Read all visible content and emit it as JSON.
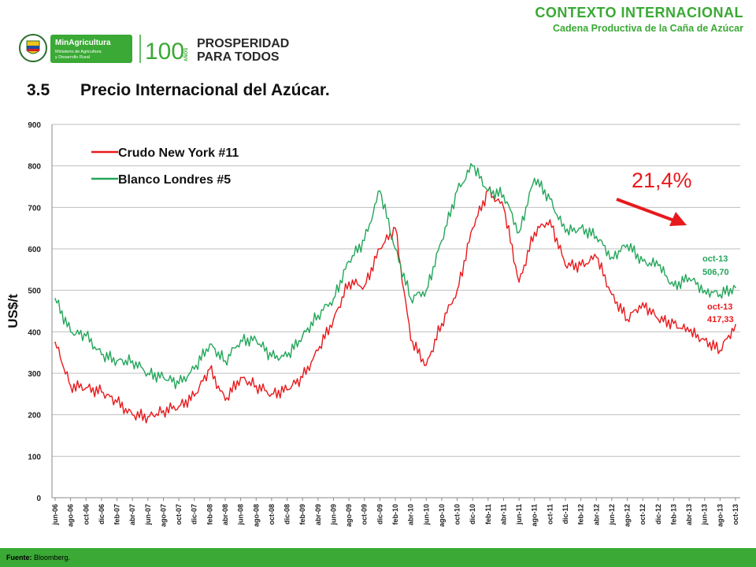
{
  "header": {
    "section": "CONTEXTO INTERNACIONAL",
    "subtitle": "Cadena Productiva de la Caña de Azúcar"
  },
  "logos": {
    "ministry_name": "MinAgricultura",
    "ministry_line1": "Ministerio de Agricultura",
    "ministry_line2": "y Desarrollo Rural",
    "anniversary_number": "100",
    "anniversary_word": "AÑOS",
    "slogan_line1": "PROSPERIDAD",
    "slogan_line2": "PARA TODOS"
  },
  "page": {
    "title_number": "3.5",
    "title_text": "Precio Internacional del Azúcar."
  },
  "footer": {
    "source_label": "Fuente:",
    "source_value": "Bloomberg."
  },
  "colors": {
    "green": "#3aa935",
    "crudo": "#e8191c",
    "blanco": "#23a65a",
    "arrow": "#e8191c"
  },
  "chart_data": {
    "type": "line",
    "ylabel": "US$/t",
    "ylim": [
      0,
      900
    ],
    "yticks": [
      0,
      100,
      200,
      300,
      400,
      500,
      600,
      700,
      800,
      900
    ],
    "grid": true,
    "legend_position": "top-left",
    "x_categories": [
      "jun-06",
      "ago-06",
      "oct-06",
      "dic-06",
      "feb-07",
      "abr-07",
      "jun-07",
      "ago-07",
      "oct-07",
      "dic-07",
      "feb-08",
      "abr-08",
      "jun-08",
      "ago-08",
      "oct-08",
      "dic-08",
      "feb-09",
      "abr-09",
      "jun-09",
      "ago-09",
      "oct-09",
      "dic-09",
      "feb-10",
      "abr-10",
      "jun-10",
      "ago-10",
      "oct-10",
      "dic-10",
      "feb-11",
      "abr-11",
      "jun-11",
      "ago-11",
      "oct-11",
      "dic-11",
      "feb-12",
      "abr-12",
      "jun-12",
      "ago-12",
      "oct-12",
      "dic-12",
      "feb-13",
      "abr-13",
      "jun-13",
      "ago-13",
      "oct-13"
    ],
    "series": [
      {
        "name": "Crudo New York #11",
        "color": "#e8191c",
        "values": [
          375,
          270,
          265,
          255,
          230,
          200,
          195,
          210,
          220,
          245,
          310,
          235,
          290,
          270,
          250,
          260,
          290,
          355,
          430,
          520,
          510,
          600,
          650,
          380,
          320,
          420,
          500,
          650,
          740,
          700,
          520,
          640,
          670,
          560,
          560,
          580,
          490,
          430,
          470,
          430,
          420,
          400,
          380,
          355,
          417.33
        ]
      },
      {
        "name": "Blanco Londres #5",
        "color": "#23a65a",
        "values": [
          480,
          400,
          390,
          345,
          330,
          330,
          300,
          290,
          275,
          310,
          370,
          330,
          380,
          380,
          340,
          340,
          390,
          440,
          480,
          570,
          620,
          740,
          600,
          480,
          500,
          620,
          740,
          800,
          740,
          730,
          640,
          770,
          720,
          640,
          650,
          630,
          580,
          610,
          570,
          560,
          510,
          530,
          500,
          490,
          506.7
        ]
      }
    ],
    "annotations": {
      "change": "21,4%",
      "label_blanco_date": "oct-13",
      "label_blanco_value": "506,70",
      "label_crudo_date": "oct-13",
      "label_crudo_value": "417,33"
    }
  }
}
